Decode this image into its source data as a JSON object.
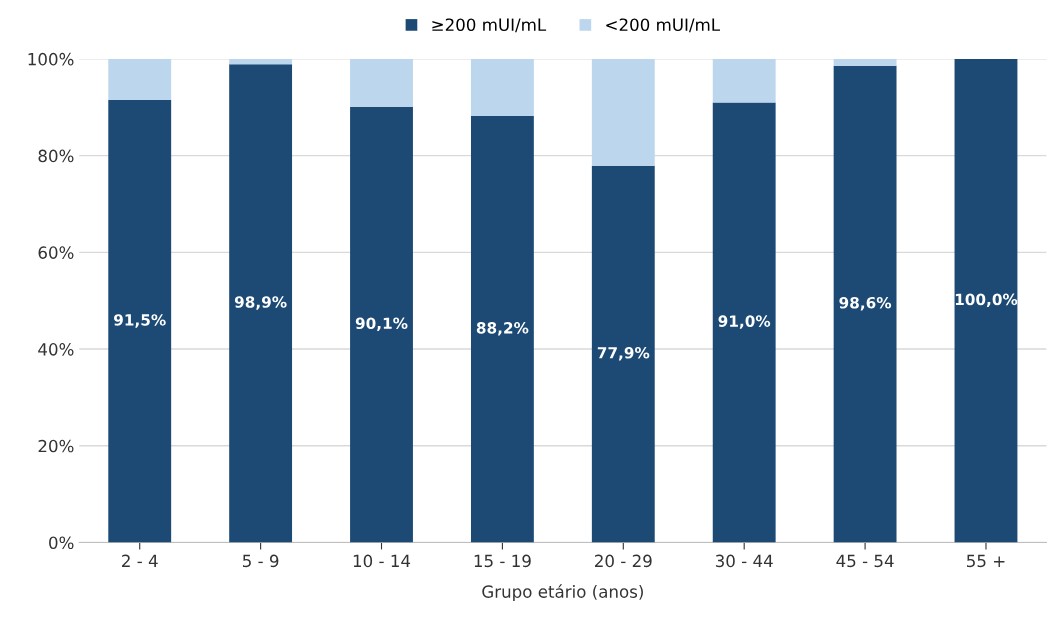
{
  "chart_data": {
    "type": "bar",
    "stacked": true,
    "xlabel": "Grupo etário (anos)",
    "categories": [
      "2 - 4",
      "5 - 9",
      "10 - 14",
      "15 - 19",
      "20 - 29",
      "30 - 44",
      "45 - 54",
      "55 +"
    ],
    "series": [
      {
        "name": "≥200 mUI/mL",
        "color": "#1d4a75",
        "values": [
          91.5,
          98.9,
          90.1,
          88.2,
          77.9,
          91.0,
          98.6,
          100.0
        ],
        "value_labels": [
          "91,5%",
          "98,9%",
          "90,1%",
          "88,2%",
          "77,9%",
          "91,0%",
          "98,6%",
          "100,0%"
        ]
      },
      {
        "name": "<200 mUI/mL",
        "color": "#bcd6ed",
        "values": [
          8.5,
          1.1,
          9.9,
          11.8,
          22.1,
          9.0,
          1.4,
          0.0
        ]
      }
    ],
    "ylim": [
      0,
      100
    ],
    "yticks": [
      {
        "value": 0,
        "label": "0%"
      },
      {
        "value": 20,
        "label": "20%"
      },
      {
        "value": 40,
        "label": "40%"
      },
      {
        "value": 60,
        "label": "60%"
      },
      {
        "value": 80,
        "label": "80%"
      },
      {
        "value": 100,
        "label": "100%"
      }
    ],
    "grid": "y",
    "legend": "top"
  }
}
